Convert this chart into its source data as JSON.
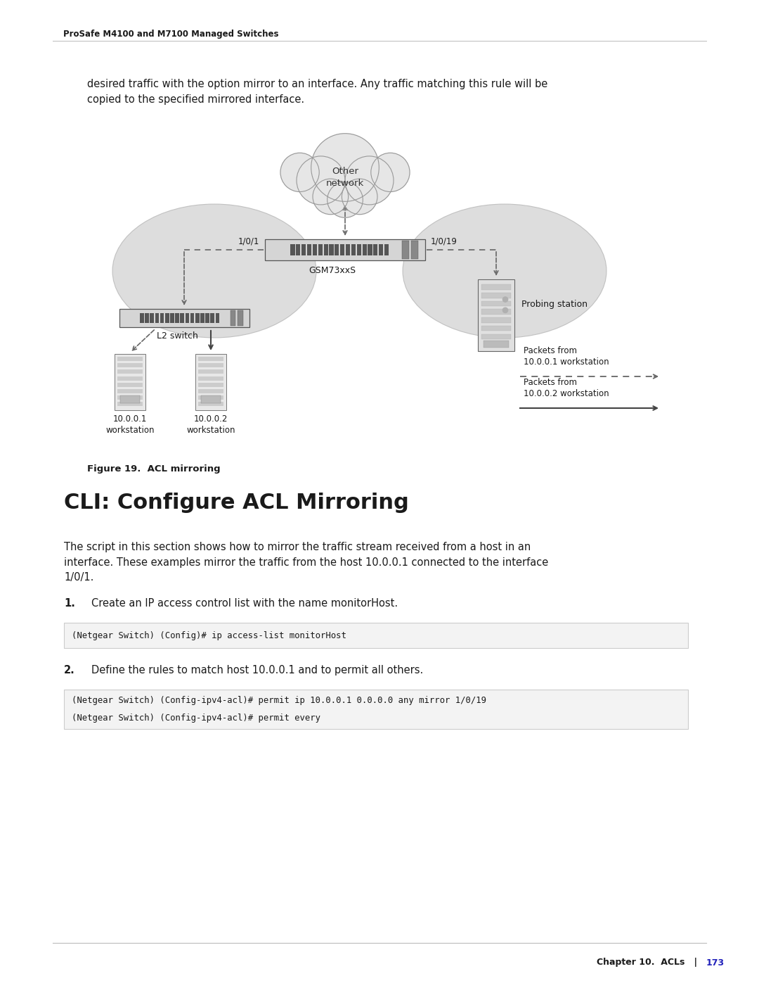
{
  "bg_color": "#ffffff",
  "page_width": 10.8,
  "page_height": 13.97,
  "header_text": "ProSafe M4100 and M7100 Managed Switches",
  "footer_text_pre": "Chapter 10.  ACLs   |   ",
  "footer_text_num": "173",
  "footer_color_main": "#1a1a1a",
  "footer_color_num": "#2222bb",
  "intro_text": "desired traffic with the option mirror to an interface. Any traffic matching this rule will be\ncopied to the specified mirrored interface.",
  "figure_caption": "Figure 19.  ACL mirroring",
  "section_title": "CLI: Configure ACL Mirroring",
  "body_text": "The script in this section shows how to mirror the traffic stream received from a host in an\ninterface. These examples mirror the traffic from the host 10.0.0.1 connected to the interface\n1/0/1.",
  "step1_num": "1.",
  "step1_text": "Create an IP access control list with the name monitorHost.",
  "code1": "(Netgear Switch) (Config)# ip access-list monitorHost",
  "step2_num": "2.",
  "step2_text": "Define the rules to match host 10.0.0.1 and to permit all others.",
  "code2_line1": "(Netgear Switch) (Config-ipv4-acl)# permit ip 10.0.0.1 0.0.0.0 any mirror 1/0/19",
  "code2_line2": "(Netgear Switch) (Config-ipv4-acl)# permit every",
  "cloud_label": "Other\nnetwork",
  "gsm_label": "GSM73xxS",
  "label_1_0_1": "1/0/1",
  "label_1_0_19": "1/0/19",
  "l2switch_label": "L2 switch",
  "probing_label": "Probing station",
  "ws1_label": "10.0.0.1\nworkstation",
  "ws2_label": "10.0.0.2\nworkstation",
  "packets1_label": "Packets from\n10.0.0.1 workstation",
  "packets2_label": "Packets from\n10.0.0.2 workstation"
}
